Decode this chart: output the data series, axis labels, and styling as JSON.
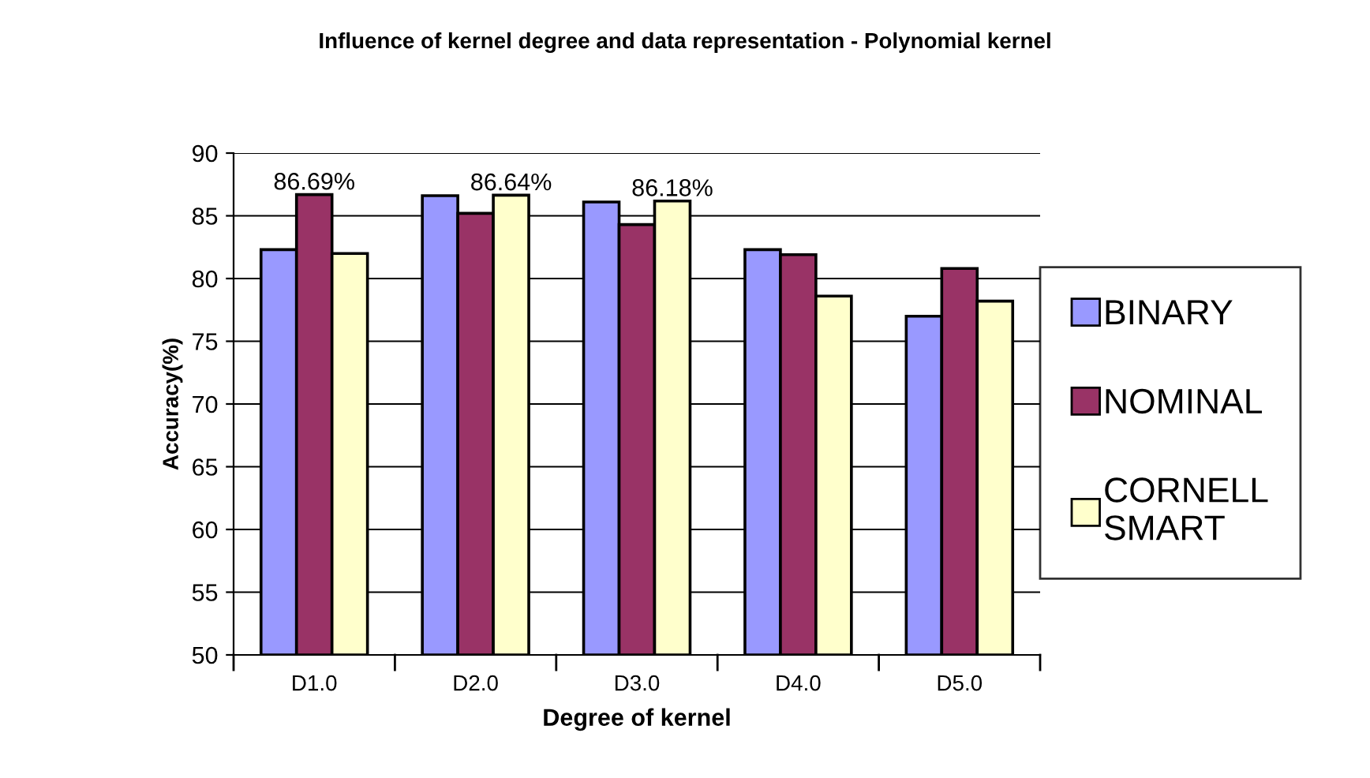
{
  "chart_data": {
    "type": "bar",
    "title": "Influence of kernel degree and data representation - Polynomial kernel",
    "xlabel": "Degree of kernel",
    "ylabel": "Accuracy(%)",
    "categories": [
      "D1.0",
      "D2.0",
      "D3.0",
      "D4.0",
      "D5.0"
    ],
    "series": [
      {
        "name": "BINARY",
        "color": "#9999ff",
        "values": [
          82.3,
          86.6,
          86.1,
          82.3,
          77.0
        ]
      },
      {
        "name": "NOMINAL",
        "color": "#993366",
        "values": [
          86.69,
          85.2,
          84.3,
          81.9,
          80.8
        ],
        "value_labels": [
          "86.69%",
          null,
          null,
          null,
          null
        ]
      },
      {
        "name": "CORNELL\nSMART",
        "color": "#ffffcc",
        "values": [
          82.0,
          86.64,
          86.18,
          78.6,
          78.2
        ],
        "value_labels": [
          null,
          "86.64%",
          "86.18%",
          null,
          null
        ]
      }
    ],
    "ylim": [
      50,
      90
    ],
    "yticks": [
      50,
      55,
      60,
      65,
      70,
      75,
      80,
      85,
      90
    ],
    "grid": "y",
    "legend": "right"
  }
}
